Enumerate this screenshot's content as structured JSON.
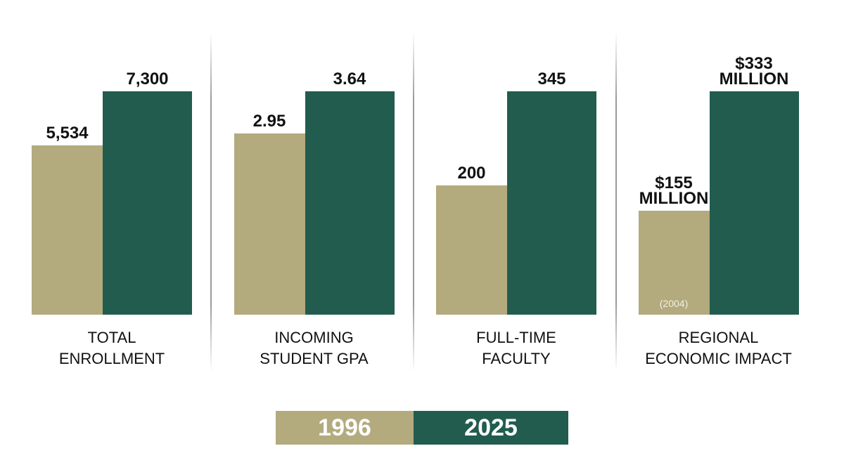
{
  "legend": {
    "items": [
      {
        "name": "1996",
        "color": "#b3aa7e"
      },
      {
        "name": "2025",
        "color": "#225c4f"
      }
    ]
  },
  "chart_data": [
    {
      "type": "bar",
      "title": "TOTAL ENROLLMENT",
      "values": [
        5534,
        7300
      ],
      "value_labels": [
        "5,534",
        "7,300"
      ]
    },
    {
      "type": "bar",
      "title": "INCOMING STUDENT GPA",
      "values": [
        2.95,
        3.64
      ]
    },
    {
      "type": "bar",
      "title": "FULL-TIME FACULTY",
      "values": [
        200,
        345
      ]
    },
    {
      "type": "bar",
      "title": "REGIONAL ECONOMIC IMPACT",
      "values": [
        155,
        333
      ],
      "value_labels": [
        "$155 MILLION",
        "$333 MILLION"
      ],
      "annotation": "(2004)"
    }
  ]
}
